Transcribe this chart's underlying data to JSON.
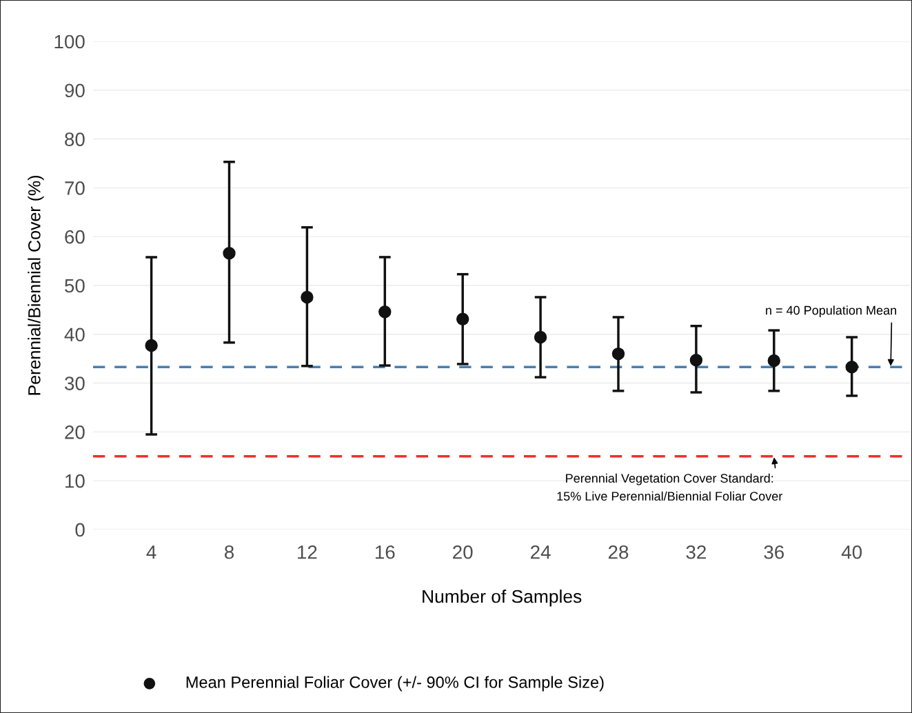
{
  "chart_data": {
    "type": "scatter",
    "xlabel": "Number of Samples",
    "ylabel": "Perennial/Biennial Cover (%)",
    "x": [
      4,
      8,
      12,
      16,
      20,
      24,
      28,
      32,
      36,
      40
    ],
    "series": [
      {
        "name": "Mean Perennial Foliar Cover (+/- 90% CI for Sample Size)",
        "color": "#111111",
        "values": [
          37.7,
          56.6,
          47.6,
          44.6,
          43.1,
          39.4,
          36.0,
          34.7,
          34.6,
          33.3
        ],
        "errors": [
          [
            19.5,
            55.8
          ],
          [
            38.3,
            75.3
          ],
          [
            33.5,
            61.9
          ],
          [
            33.6,
            55.8
          ],
          [
            33.9,
            52.3
          ],
          [
            31.2,
            47.6
          ],
          [
            28.4,
            43.5
          ],
          [
            28.1,
            41.7
          ],
          [
            28.4,
            40.8
          ],
          [
            27.4,
            39.4
          ]
        ]
      }
    ],
    "xlim": [
      1,
      43
    ],
    "xticks": [
      4,
      8,
      12,
      16,
      20,
      24,
      28,
      32,
      36,
      40
    ],
    "ylim": [
      0,
      100
    ],
    "yticks": [
      0,
      10,
      20,
      30,
      40,
      50,
      60,
      70,
      80,
      90,
      100
    ],
    "ref_lines": [
      {
        "axis": "y",
        "value": 33.3,
        "color": "#4a7fb0",
        "line_style": "dashed"
      },
      {
        "axis": "y",
        "value": 15,
        "color": "#f0302c",
        "line_style": "dashed"
      }
    ],
    "annotations": [
      {
        "text": "n = 40 Population Mean",
        "x": 42,
        "y": 33.3
      },
      {
        "text": "Perennial Vegetation Cover Standard:\n15% Live Perennial/Biennial Foliar Cover",
        "x": 36,
        "y": 15
      }
    ],
    "grid": "y",
    "legend": "bottom",
    "marker": "circle"
  }
}
